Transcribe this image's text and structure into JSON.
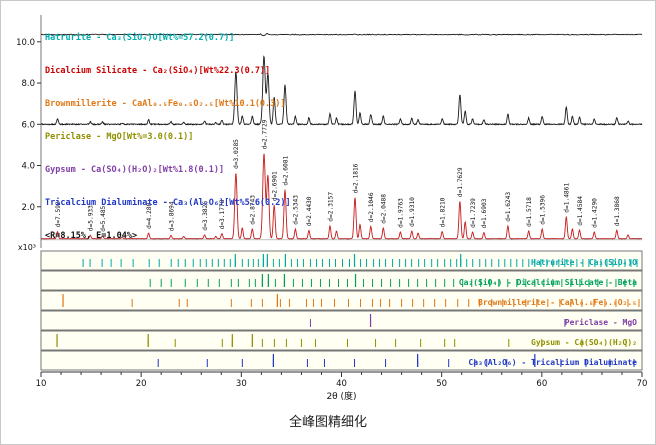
{
  "chart_data": {
    "type": "line",
    "title": "全峰图精细化",
    "xlabel": "2θ (度)",
    "ylabel_multiplier": "x10³",
    "xlim": [
      10,
      70
    ],
    "ylim": [
      0,
      11.3
    ],
    "x_ticks": [
      10,
      20,
      30,
      40,
      50,
      60,
      70
    ],
    "y_ticks": [
      2,
      4,
      6,
      8,
      10
    ],
    "y_tick_labels": [
      "2.0",
      "4.0",
      "6.0",
      "8.0",
      "10.0"
    ],
    "grid": false,
    "legend_position": "upper-left",
    "legend": [
      {
        "text": "Hatrurite - Ca₃(SiO₄)O[Wt%=57.2(0.7)]",
        "color": "#00AEAE"
      },
      {
        "text": "Dicalcium Silicate - Ca₂(SiO₄)[Wt%22.3(0.7)]",
        "color": "#CC0000"
      },
      {
        "text": "Brownmillerite - CaAl₀.₅Fe₀.₅O₂.₅[Wt%10.1(0.3)]",
        "color": "#E07818"
      },
      {
        "text": "Periclase - MgO[Wt%=3.0(0.1)]",
        "color": "#8F8F00"
      },
      {
        "text": "Gypsum - Ca(SO₄)(H₂O)₂[Wt%1.8(0.1)]",
        "color": "#8040A8"
      },
      {
        "text": "Tricalcium Dialuminate - Ca₃(Al₂O₆)[Wt%5.6(0.2)]",
        "color": "#2038C8"
      }
    ],
    "residual_text": "<R=8.15%, E=1.04%>",
    "series": {
      "observed": {
        "name": "observed (offset)",
        "color": "#1a1a1a",
        "baseline": 6.0
      },
      "calculated": {
        "name": "calculated",
        "color": "#CC2020",
        "baseline": 0.45,
        "scale": 1.25
      },
      "difference": {
        "name": "difference",
        "color": "#1a1a1a",
        "level": 10.35
      },
      "background": {
        "name": "background",
        "color": "#999999",
        "level": 0.4
      }
    },
    "peaks": [
      {
        "x": 11.65,
        "h": 0.28,
        "label": "d=7.592"
      },
      {
        "x": 14.92,
        "h": 0.13,
        "label": "d=5.933"
      },
      {
        "x": 16.15,
        "h": 0.11,
        "label": "d=5.485"
      },
      {
        "x": 18.1,
        "h": 0.06
      },
      {
        "x": 20.74,
        "h": 0.22,
        "label": "d=4.280"
      },
      {
        "x": 22.98,
        "h": 0.13,
        "label": "d=3.8694"
      },
      {
        "x": 24.25,
        "h": 0.09
      },
      {
        "x": 26.33,
        "h": 0.15,
        "label": "d=3.3826"
      },
      {
        "x": 27.45,
        "h": 0.09
      },
      {
        "x": 28.06,
        "h": 0.2,
        "label": "d=3.1778"
      },
      {
        "x": 29.46,
        "h": 2.55,
        "label": "d=3.0285"
      },
      {
        "x": 30.1,
        "h": 0.42
      },
      {
        "x": 31.09,
        "h": 0.38,
        "label": "d=2.8743"
      },
      {
        "x": 32.26,
        "h": 3.3,
        "label": "d=2.7729"
      },
      {
        "x": 32.65,
        "h": 2.45
      },
      {
        "x": 33.28,
        "h": 1.3,
        "label": "d=2.6901"
      },
      {
        "x": 34.36,
        "h": 1.9,
        "label": "d=2.6081"
      },
      {
        "x": 35.4,
        "h": 0.38,
        "label": "d=2.5343"
      },
      {
        "x": 36.75,
        "h": 0.32,
        "label": "d=2.4430"
      },
      {
        "x": 38.85,
        "h": 0.5,
        "label": "d=2.3157"
      },
      {
        "x": 39.5,
        "h": 0.3
      },
      {
        "x": 41.35,
        "h": 1.6,
        "label": "d=2.1816"
      },
      {
        "x": 41.85,
        "h": 0.55
      },
      {
        "x": 42.93,
        "h": 0.48,
        "label": "d=2.1046"
      },
      {
        "x": 44.17,
        "h": 0.42,
        "label": "d=2.0488"
      },
      {
        "x": 45.88,
        "h": 0.26,
        "label": "d=1.9763"
      },
      {
        "x": 47.02,
        "h": 0.3,
        "label": "d=1.9310"
      },
      {
        "x": 47.65,
        "h": 0.22
      },
      {
        "x": 50.05,
        "h": 0.28,
        "label": "d=1.8210"
      },
      {
        "x": 51.82,
        "h": 1.45,
        "label": "d=1.7629"
      },
      {
        "x": 52.35,
        "h": 0.65
      },
      {
        "x": 53.09,
        "h": 0.26,
        "label": "d=1.7239"
      },
      {
        "x": 54.22,
        "h": 0.24,
        "label": "d=1.6903"
      },
      {
        "x": 56.61,
        "h": 0.5,
        "label": "d=1.6243"
      },
      {
        "x": 58.69,
        "h": 0.3,
        "label": "d=1.5718"
      },
      {
        "x": 60.04,
        "h": 0.38,
        "label": "d=1.5396"
      },
      {
        "x": 62.44,
        "h": 0.85,
        "label": "d=1.4861"
      },
      {
        "x": 63.05,
        "h": 0.38
      },
      {
        "x": 63.76,
        "h": 0.34,
        "label": "d=1.4584"
      },
      {
        "x": 65.24,
        "h": 0.26,
        "label": "d=1.4290"
      },
      {
        "x": 67.48,
        "h": 0.33,
        "label": "d=1.3868"
      },
      {
        "x": 68.6,
        "h": 0.15
      }
    ],
    "phase_rows": [
      {
        "label": "Hatrurite - Ca₃(SiO₄)O",
        "color": "#00A8A8",
        "ticks": [
          14.2,
          14.9,
          16.1,
          17.0,
          18.0,
          19.2,
          20.8,
          21.8,
          23.0,
          23.7,
          24.4,
          25.2,
          25.9,
          26.5,
          27.1,
          27.7,
          28.3,
          28.9,
          29.4,
          30.1,
          30.7,
          31.2,
          31.7,
          32.2,
          32.6,
          33.2,
          33.8,
          34.4,
          35.0,
          35.6,
          36.2,
          36.9,
          37.5,
          38.1,
          38.8,
          39.4,
          40.1,
          40.8,
          41.3,
          41.9,
          42.5,
          43.2,
          43.8,
          44.4,
          45.1,
          45.8,
          46.4,
          47.0,
          47.7,
          48.3,
          49.0,
          49.6,
          50.3,
          50.9,
          51.5,
          51.9,
          52.5,
          53.1,
          53.8,
          54.4,
          55.0,
          55.7,
          56.3,
          56.9,
          57.5,
          58.1,
          58.7,
          59.3,
          59.9,
          60.5,
          61.1,
          61.7,
          62.3,
          62.9,
          63.5,
          64.1,
          64.7,
          65.3,
          65.9,
          66.5,
          67.1,
          67.7,
          68.3,
          68.9,
          69.5
        ],
        "tall": [
          29.4,
          32.2,
          32.6,
          34.4,
          41.3,
          51.9
        ]
      },
      {
        "label": "Ca₂(SiO₄) - Dicalcium Silicate - Beta",
        "color": "#00A060",
        "ticks": [
          20.9,
          22.0,
          23.0,
          24.4,
          25.6,
          26.7,
          27.8,
          29.0,
          29.7,
          30.8,
          31.4,
          32.1,
          32.7,
          33.4,
          34.3,
          35.2,
          36.1,
          37.0,
          37.9,
          38.8,
          39.7,
          40.6,
          41.4,
          42.2,
          43.1,
          44.0,
          44.9,
          45.8,
          46.7,
          47.6,
          48.5,
          49.4,
          50.3,
          51.2,
          52.1,
          53.0,
          53.9,
          54.8,
          55.7,
          56.6,
          57.5,
          58.4,
          59.3,
          60.2,
          61.1,
          62.0,
          62.9,
          63.8,
          64.7,
          65.6,
          66.5,
          67.4,
          68.3,
          69.2
        ],
        "tall": [
          32.1,
          32.7,
          34.3,
          41.4
        ]
      },
      {
        "label": "Brownmillerite - CaAl₀.₅Fe₀.₅O₂.₅",
        "color": "#E07818",
        "ticks": [
          12.2,
          19.1,
          23.8,
          24.6,
          29.0,
          31.0,
          32.1,
          33.6,
          33.9,
          34.8,
          36.5,
          37.2,
          38.0,
          39.3,
          40.7,
          41.9,
          43.1,
          43.9,
          44.8,
          46.0,
          47.1,
          48.2,
          49.3,
          50.4,
          51.6,
          52.7,
          53.8,
          55.0,
          56.1,
          57.2,
          58.4,
          59.5,
          60.6,
          61.8,
          62.9,
          64.0,
          65.2,
          66.3,
          67.4,
          68.6,
          69.7
        ],
        "tall": [
          12.2,
          33.6
        ]
      },
      {
        "label": "Periclase - MgO",
        "color": "#8040A8",
        "ticks": [
          36.9,
          42.9,
          62.3
        ],
        "tall": [
          42.9
        ]
      },
      {
        "label": "Gypsum - Ca(SO₄)(H₂O)₂",
        "color": "#909000",
        "ticks": [
          11.6,
          20.7,
          23.4,
          28.1,
          29.1,
          31.1,
          32.1,
          33.3,
          34.5,
          36.0,
          37.4,
          40.6,
          43.4,
          45.4,
          47.9,
          50.3,
          51.3,
          56.7,
          60.0,
          64.0,
          68.4
        ],
        "tall": [
          11.6,
          20.7,
          29.1,
          31.1
        ]
      },
      {
        "label": "Ca₃(Al₂O₆) - Tricalcium Dialuminate",
        "color": "#2038C8",
        "ticks": [
          21.7,
          26.6,
          30.1,
          33.2,
          36.6,
          38.3,
          41.3,
          44.4,
          47.6,
          50.7,
          53.3,
          54.5,
          56.5,
          59.3,
          61.9,
          64.4,
          66.8,
          69.2
        ],
        "tall": [
          33.2,
          47.6,
          59.3
        ]
      }
    ]
  }
}
